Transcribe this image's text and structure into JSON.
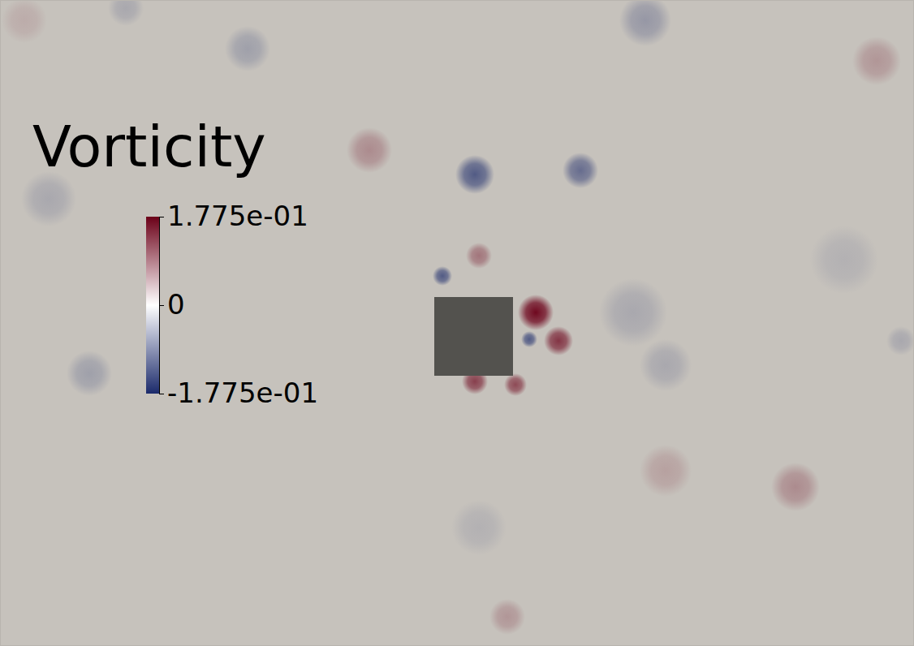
{
  "chart_data": {
    "type": "field",
    "title": "Vorticity",
    "xlim": [
      0,
      11.26
    ],
    "ylim": [
      0,
      7.96
    ],
    "tick_labels": false,
    "obstacle": {
      "x": [
        5.35,
        6.32
      ],
      "y": [
        3.33,
        4.3
      ]
    },
    "colorbar": {
      "range": [
        -0.1775,
        0.1775
      ],
      "ticks": [
        {
          "value": 0.1775,
          "label": "1.775e-01"
        },
        0,
        {
          "value": -0.1775,
          "label": "-1.775e-01"
        }
      ]
    },
    "vortices": [
      {
        "x": 6.6,
        "y": 4.11,
        "vorticity": 0.17,
        "radius": 0.22
      },
      {
        "x": 6.88,
        "y": 3.76,
        "vorticity": 0.13,
        "radius": 0.18
      },
      {
        "x": 5.85,
        "y": 3.26,
        "vorticity": 0.12,
        "radius": 0.16
      },
      {
        "x": 6.35,
        "y": 3.22,
        "vorticity": 0.11,
        "radius": 0.14
      },
      {
        "x": 6.52,
        "y": 3.78,
        "vorticity": -0.12,
        "radius": 0.1
      },
      {
        "x": 5.85,
        "y": 5.81,
        "vorticity": -0.12,
        "radius": 0.24
      },
      {
        "x": 5.45,
        "y": 4.56,
        "vorticity": -0.12,
        "radius": 0.12
      },
      {
        "x": 7.15,
        "y": 5.86,
        "vorticity": -0.1,
        "radius": 0.22
      },
      {
        "x": 5.9,
        "y": 4.81,
        "vorticity": 0.07,
        "radius": 0.16
      },
      {
        "x": 4.55,
        "y": 6.11,
        "vorticity": 0.05,
        "radius": 0.28
      },
      {
        "x": 10.8,
        "y": 7.21,
        "vorticity": 0.04,
        "radius": 0.3
      },
      {
        "x": 9.8,
        "y": 1.96,
        "vorticity": 0.05,
        "radius": 0.3
      },
      {
        "x": 6.25,
        "y": 0.36,
        "vorticity": 0.04,
        "radius": 0.22
      },
      {
        "x": 3.05,
        "y": 7.36,
        "vorticity": -0.04,
        "radius": 0.28
      },
      {
        "x": 7.95,
        "y": 7.71,
        "vorticity": -0.05,
        "radius": 0.32
      },
      {
        "x": 0.6,
        "y": 5.51,
        "vorticity": -0.03,
        "radius": 0.34
      },
      {
        "x": 1.1,
        "y": 3.36,
        "vorticity": -0.04,
        "radius": 0.28
      },
      {
        "x": 7.8,
        "y": 4.11,
        "vorticity": -0.03,
        "radius": 0.42
      },
      {
        "x": 8.2,
        "y": 3.46,
        "vorticity": -0.03,
        "radius": 0.32
      },
      {
        "x": 11.1,
        "y": 3.76,
        "vorticity": -0.03,
        "radius": 0.18
      },
      {
        "x": 1.55,
        "y": 7.86,
        "vorticity": -0.03,
        "radius": 0.22
      },
      {
        "x": 0.3,
        "y": 7.71,
        "vorticity": 0.02,
        "radius": 0.28
      },
      {
        "x": 5.9,
        "y": 1.46,
        "vorticity": -0.02,
        "radius": 0.34
      },
      {
        "x": 8.2,
        "y": 2.16,
        "vorticity": 0.03,
        "radius": 0.32
      },
      {
        "x": 10.4,
        "y": 4.76,
        "vorticity": -0.02,
        "radius": 0.42
      }
    ]
  }
}
